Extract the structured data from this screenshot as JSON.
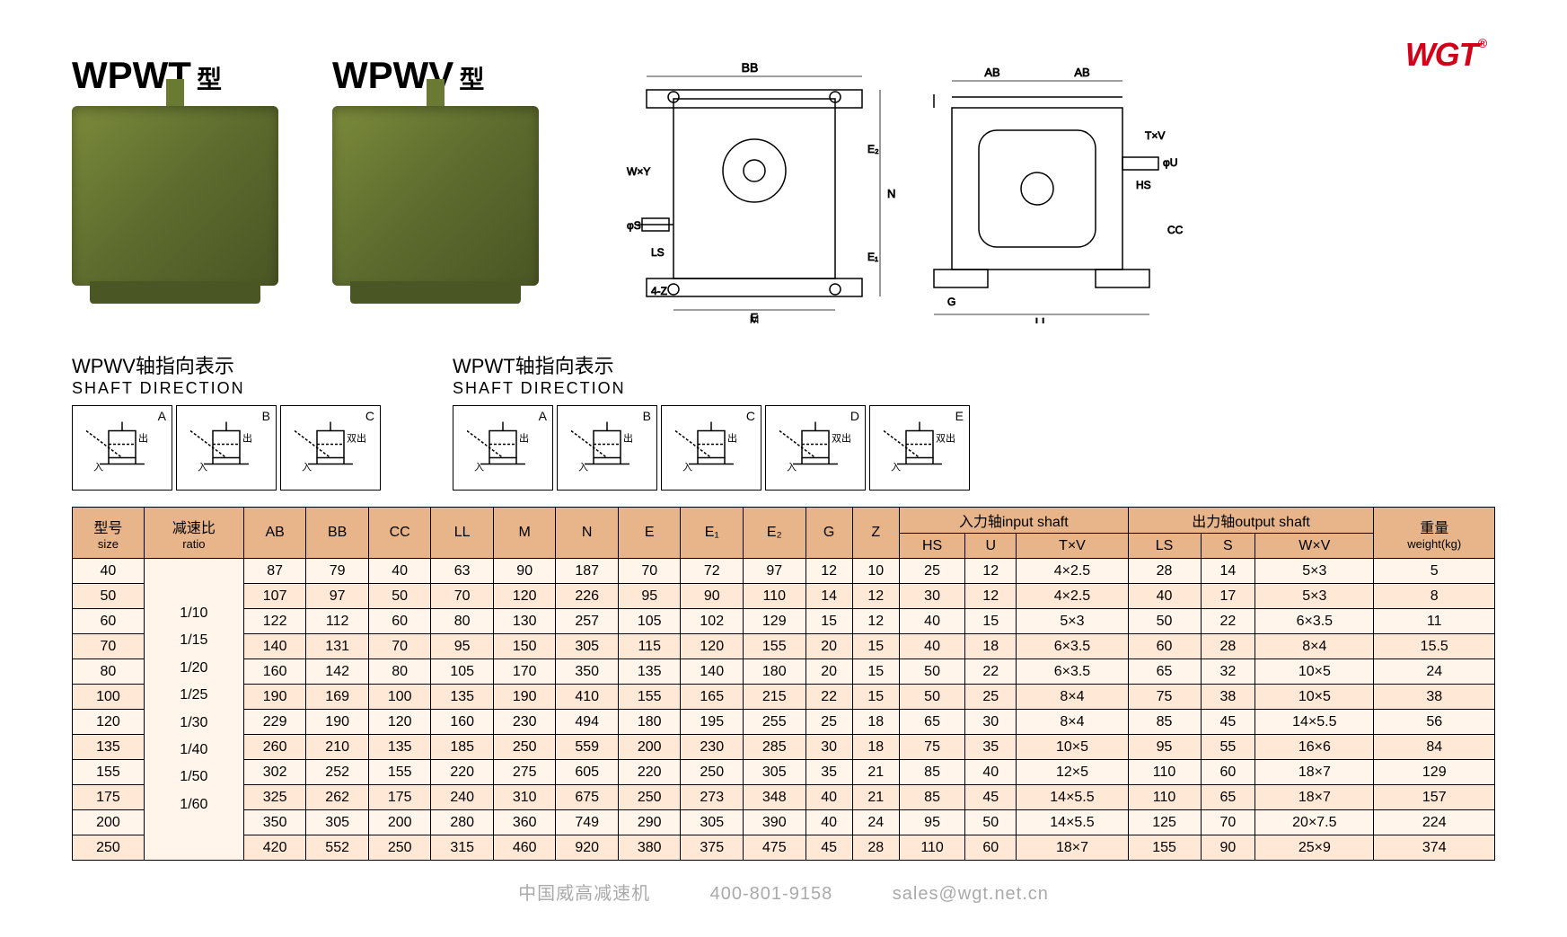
{
  "logo": "WGT",
  "logo_tm": "®",
  "products": [
    {
      "title": "WPWT",
      "suffix": "型"
    },
    {
      "title": "WPWV",
      "suffix": "型"
    }
  ],
  "drawing_labels": {
    "bb": "BB",
    "ab1": "AB",
    "ab2": "AB",
    "wxy": "W×Y",
    "phi_s": "φS",
    "ls": "LS",
    "4z": "4-Z",
    "e": "E",
    "m": "M",
    "g": "G",
    "ll": "LL",
    "n": "N",
    "e1": "E₁",
    "e2": "E₂",
    "txv": "T×V",
    "phi_u": "φU",
    "hs": "HS",
    "cc": "CC"
  },
  "shaft_groups": [
    {
      "title_cn": "WPWV轴指向表示",
      "title_en": "SHAFT DIRECTION",
      "boxes": [
        {
          "label": "A",
          "in": "入",
          "out": "出"
        },
        {
          "label": "B",
          "in": "入",
          "out": "出"
        },
        {
          "label": "C",
          "in": "入",
          "out": "双出"
        }
      ]
    },
    {
      "title_cn": "WPWT轴指向表示",
      "title_en": "SHAFT DIRECTION",
      "boxes": [
        {
          "label": "A",
          "in": "入",
          "out": "出"
        },
        {
          "label": "B",
          "in": "入",
          "out": "出"
        },
        {
          "label": "C",
          "in": "入",
          "out": "出"
        },
        {
          "label": "D",
          "in": "入",
          "out": "双出"
        },
        {
          "label": "E",
          "in": "入",
          "out": "双出"
        }
      ]
    }
  ],
  "table": {
    "header_row1": {
      "size_cn": "型号",
      "size_en": "size",
      "ratio_cn": "减速比",
      "ratio_en": "ratio",
      "ab": "AB",
      "bb": "BB",
      "cc": "CC",
      "ll": "LL",
      "m": "M",
      "n": "N",
      "e": "E",
      "e1": "E₁",
      "e2": "E₂",
      "g": "G",
      "z": "Z",
      "input_cn": "入力轴",
      "input_en": "input shaft",
      "output_cn": "出力轴",
      "output_en": "output shaft",
      "weight_cn": "重量",
      "weight_en": "weight(kg)"
    },
    "header_row2": {
      "hs": "HS",
      "u": "U",
      "txv": "T×V",
      "ls": "LS",
      "s": "S",
      "wxv": "W×V"
    },
    "ratios": [
      "1/10",
      "1/15",
      "1/20",
      "1/25",
      "1/30",
      "1/40",
      "1/50",
      "1/60"
    ],
    "rows": [
      {
        "size": "40",
        "ab": "87",
        "bb": "79",
        "cc": "40",
        "ll": "63",
        "m": "90",
        "n": "187",
        "e": "70",
        "e1": "72",
        "e2": "97",
        "g": "12",
        "z": "10",
        "hs": "25",
        "u": "12",
        "txv": "4×2.5",
        "ls": "28",
        "s": "14",
        "wxv": "5×3",
        "wt": "5"
      },
      {
        "size": "50",
        "ab": "107",
        "bb": "97",
        "cc": "50",
        "ll": "70",
        "m": "120",
        "n": "226",
        "e": "95",
        "e1": "90",
        "e2": "110",
        "g": "14",
        "z": "12",
        "hs": "30",
        "u": "12",
        "txv": "4×2.5",
        "ls": "40",
        "s": "17",
        "wxv": "5×3",
        "wt": "8"
      },
      {
        "size": "60",
        "ab": "122",
        "bb": "112",
        "cc": "60",
        "ll": "80",
        "m": "130",
        "n": "257",
        "e": "105",
        "e1": "102",
        "e2": "129",
        "g": "15",
        "z": "12",
        "hs": "40",
        "u": "15",
        "txv": "5×3",
        "ls": "50",
        "s": "22",
        "wxv": "6×3.5",
        "wt": "11"
      },
      {
        "size": "70",
        "ab": "140",
        "bb": "131",
        "cc": "70",
        "ll": "95",
        "m": "150",
        "n": "305",
        "e": "115",
        "e1": "120",
        "e2": "155",
        "g": "20",
        "z": "15",
        "hs": "40",
        "u": "18",
        "txv": "6×3.5",
        "ls": "60",
        "s": "28",
        "wxv": "8×4",
        "wt": "15.5"
      },
      {
        "size": "80",
        "ab": "160",
        "bb": "142",
        "cc": "80",
        "ll": "105",
        "m": "170",
        "n": "350",
        "e": "135",
        "e1": "140",
        "e2": "180",
        "g": "20",
        "z": "15",
        "hs": "50",
        "u": "22",
        "txv": "6×3.5",
        "ls": "65",
        "s": "32",
        "wxv": "10×5",
        "wt": "24"
      },
      {
        "size": "100",
        "ab": "190",
        "bb": "169",
        "cc": "100",
        "ll": "135",
        "m": "190",
        "n": "410",
        "e": "155",
        "e1": "165",
        "e2": "215",
        "g": "22",
        "z": "15",
        "hs": "50",
        "u": "25",
        "txv": "8×4",
        "ls": "75",
        "s": "38",
        "wxv": "10×5",
        "wt": "38"
      },
      {
        "size": "120",
        "ab": "229",
        "bb": "190",
        "cc": "120",
        "ll": "160",
        "m": "230",
        "n": "494",
        "e": "180",
        "e1": "195",
        "e2": "255",
        "g": "25",
        "z": "18",
        "hs": "65",
        "u": "30",
        "txv": "8×4",
        "ls": "85",
        "s": "45",
        "wxv": "14×5.5",
        "wt": "56"
      },
      {
        "size": "135",
        "ab": "260",
        "bb": "210",
        "cc": "135",
        "ll": "185",
        "m": "250",
        "n": "559",
        "e": "200",
        "e1": "230",
        "e2": "285",
        "g": "30",
        "z": "18",
        "hs": "75",
        "u": "35",
        "txv": "10×5",
        "ls": "95",
        "s": "55",
        "wxv": "16×6",
        "wt": "84"
      },
      {
        "size": "155",
        "ab": "302",
        "bb": "252",
        "cc": "155",
        "ll": "220",
        "m": "275",
        "n": "605",
        "e": "220",
        "e1": "250",
        "e2": "305",
        "g": "35",
        "z": "21",
        "hs": "85",
        "u": "40",
        "txv": "12×5",
        "ls": "110",
        "s": "60",
        "wxv": "18×7",
        "wt": "129"
      },
      {
        "size": "175",
        "ab": "325",
        "bb": "262",
        "cc": "175",
        "ll": "240",
        "m": "310",
        "n": "675",
        "e": "250",
        "e1": "273",
        "e2": "348",
        "g": "40",
        "z": "21",
        "hs": "85",
        "u": "45",
        "txv": "14×5.5",
        "ls": "110",
        "s": "65",
        "wxv": "18×7",
        "wt": "157"
      },
      {
        "size": "200",
        "ab": "350",
        "bb": "305",
        "cc": "200",
        "ll": "280",
        "m": "360",
        "n": "749",
        "e": "290",
        "e1": "305",
        "e2": "390",
        "g": "40",
        "z": "24",
        "hs": "95",
        "u": "50",
        "txv": "14×5.5",
        "ls": "125",
        "s": "70",
        "wxv": "20×7.5",
        "wt": "224"
      },
      {
        "size": "250",
        "ab": "420",
        "bb": "552",
        "cc": "250",
        "ll": "315",
        "m": "460",
        "n": "920",
        "e": "380",
        "e1": "375",
        "e2": "475",
        "g": "45",
        "z": "28",
        "hs": "110",
        "u": "60",
        "txv": "18×7",
        "ls": "155",
        "s": "90",
        "wxv": "25×9",
        "wt": "374"
      }
    ],
    "colors": {
      "header_bg": "#e8b58a",
      "row_odd_bg": "#fff5eb",
      "row_even_bg": "#ffe8d5",
      "border": "#000000"
    }
  },
  "footer": {
    "company": "中国威高减速机",
    "phone": "400-801-9158",
    "email": "sales@wgt.net.cn"
  }
}
